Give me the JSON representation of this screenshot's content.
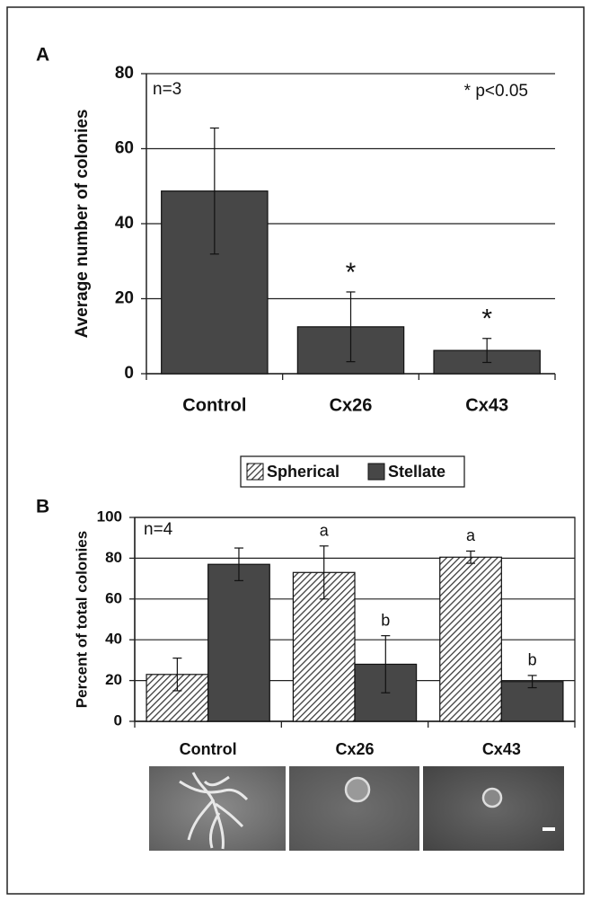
{
  "chart_data": [
    {
      "type": "bar",
      "panel_label": "A",
      "y_label": "Average number of colonies",
      "categories": [
        "Control",
        "Cx26",
        "Cx43"
      ],
      "values": [
        48.7,
        12.5,
        6.2
      ],
      "errors": [
        16.8,
        9.3,
        3.2
      ],
      "bar_labels": [
        null,
        "*",
        "*"
      ],
      "color": "#474747",
      "ylim": [
        0,
        80
      ],
      "yticks": [
        0,
        20,
        40,
        60,
        80
      ],
      "grid": true,
      "annotations": [
        "n=3",
        "* p<0.05"
      ]
    },
    {
      "type": "bar",
      "panel_label": "B",
      "y_label": "Percent of total colonies",
      "categories": [
        "Control",
        "Cx26",
        "Cx43"
      ],
      "series": [
        {
          "name": "Spherical",
          "color": "#3c3c3c",
          "hatch": true,
          "values": [
            23,
            73,
            80.5
          ],
          "errors": [
            8,
            13,
            3
          ],
          "bar_labels": [
            null,
            "a",
            "a"
          ]
        },
        {
          "name": "Stellate",
          "color": "#474747",
          "hatch": false,
          "values": [
            77,
            28,
            19.5
          ],
          "errors": [
            8,
            14,
            3
          ],
          "bar_labels": [
            null,
            "b",
            "b"
          ]
        }
      ],
      "ylim": [
        0,
        100
      ],
      "yticks": [
        0,
        20,
        40,
        60,
        80,
        100
      ],
      "grid": true,
      "legend": "top",
      "annotations": [
        "n=4"
      ]
    }
  ]
}
